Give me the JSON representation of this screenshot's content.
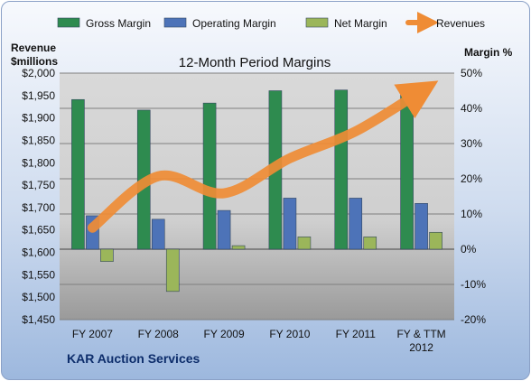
{
  "chart_data": {
    "type": "bar",
    "title": "12-Month Period Margins",
    "company": "KAR Auction Services",
    "categories": [
      [
        "FY 2007"
      ],
      [
        "FY 2008"
      ],
      [
        "FY 2009"
      ],
      [
        "FY 2010"
      ],
      [
        "FY 2011"
      ],
      [
        "FY & TTM",
        "2012"
      ]
    ],
    "left_axis": {
      "label_lines": [
        "Revenue",
        "$millions"
      ],
      "ylim": [
        1450,
        2000
      ],
      "ticks": [
        1450,
        1500,
        1550,
        1600,
        1650,
        1700,
        1750,
        1800,
        1850,
        1900,
        1950,
        2000
      ],
      "tick_labels": [
        "$1,450",
        "$1,500",
        "$1,550",
        "$1,600",
        "$1,650",
        "$1,700",
        "$1,750",
        "$1,800",
        "$1,850",
        "$1,900",
        "$1,950",
        "$2,000"
      ]
    },
    "right_axis": {
      "label": "Margin %",
      "ylim": [
        -20,
        50
      ],
      "ticks": [
        -20,
        -10,
        0,
        10,
        20,
        30,
        40,
        50
      ],
      "tick_labels": [
        "-20%",
        "-10%",
        "0%",
        "10%",
        "20%",
        "30%",
        "40%",
        "50%"
      ]
    },
    "series": [
      {
        "name": "Gross Margin",
        "kind": "bar",
        "axis": "right",
        "color": "#2e8b4f",
        "values": [
          42.5,
          39.5,
          41.5,
          45.0,
          45.2,
          44.0
        ]
      },
      {
        "name": "Operating Margin",
        "kind": "bar",
        "axis": "right",
        "color": "#4d73b8",
        "values": [
          9.5,
          8.5,
          11.0,
          14.5,
          14.5,
          13.0
        ]
      },
      {
        "name": "Net Margin",
        "kind": "bar",
        "axis": "right",
        "color": "#9bb65a",
        "values": [
          -3.5,
          -12.0,
          1.0,
          3.5,
          3.5,
          4.8
        ]
      },
      {
        "name": "Revenues",
        "kind": "line",
        "axis": "left",
        "color": "#ef8c35",
        "values": [
          1655,
          1770,
          1732,
          1810,
          1870,
          1960
        ]
      }
    ],
    "legend": {
      "position": "top"
    },
    "grid": true
  }
}
